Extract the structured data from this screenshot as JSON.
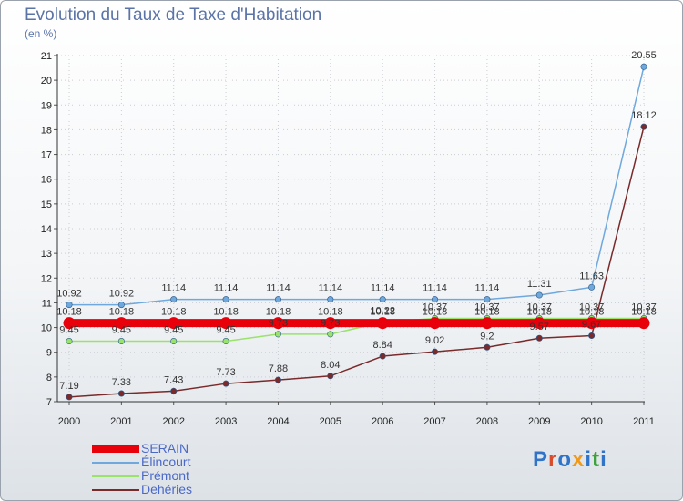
{
  "header": {
    "title": "Evolution du Taux de Taxe d'Habitation",
    "subtitle": "(en %)"
  },
  "logo": {
    "letters": [
      "P",
      "r",
      "o",
      "x",
      "i",
      "t",
      "i"
    ],
    "colors": [
      "#2f74c8",
      "#d94b2b",
      "#2f74c8",
      "#f09a1c",
      "#2f74c8",
      "#3aa23a",
      "#2f74c8"
    ]
  },
  "chart_data": {
    "type": "line",
    "title": "Evolution du Taux de Taxe d'Habitation",
    "ylabel": "(en %)",
    "xlabel": "",
    "x": [
      "2000",
      "2001",
      "2002",
      "2003",
      "2004",
      "2005",
      "2006",
      "2007",
      "2008",
      "2009",
      "2010",
      "2011"
    ],
    "ylim": [
      7,
      21
    ],
    "yticks": [
      "7",
      "8",
      "9",
      "10",
      "11",
      "12",
      "13",
      "14",
      "15",
      "16",
      "17",
      "18",
      "19",
      "20",
      "21"
    ],
    "legend_position": "bottom-left",
    "series": [
      {
        "name": "SERAIN",
        "color": "#e8000b",
        "emphasis": true,
        "values": [
          10.18,
          10.18,
          10.18,
          10.18,
          10.18,
          10.18,
          10.18,
          10.18,
          10.18,
          10.18,
          10.18,
          10.18
        ],
        "labels": [
          "10.18",
          "10.18",
          "10.18",
          "10.18",
          "10.18",
          "10.18",
          "10.18",
          "10.18",
          "10.18",
          "10.18",
          "10.18",
          "10.18"
        ]
      },
      {
        "name": "Élincourt",
        "color": "#6fa8dc",
        "values": [
          10.92,
          10.92,
          11.14,
          11.14,
          11.14,
          11.14,
          11.14,
          11.14,
          11.14,
          11.31,
          11.63,
          20.55
        ],
        "labels": [
          "10.92",
          "10.92",
          "11.14",
          "11.14",
          "11.14",
          "11.14",
          "11.14",
          "11.14",
          "11.14",
          "11.31",
          "11.63",
          "20.55"
        ]
      },
      {
        "name": "Prémont",
        "color": "#99e26b",
        "values": [
          9.45,
          9.45,
          9.45,
          9.45,
          9.73,
          9.73,
          10.22,
          10.37,
          10.37,
          10.37,
          10.37,
          10.37
        ],
        "labels": [
          "9.45",
          "9.45",
          "9.45",
          "9.45",
          "9.73",
          "9.73",
          "10.22",
          "10.37",
          "10.37",
          "10.37",
          "10.37",
          "10.37"
        ]
      },
      {
        "name": "Dehéries",
        "color": "#7a2a2a",
        "values": [
          7.19,
          7.33,
          7.43,
          7.73,
          7.88,
          8.04,
          8.84,
          9.02,
          9.2,
          9.57,
          9.67,
          18.12
        ],
        "labels": [
          "7.19",
          "7.33",
          "7.43",
          "7.73",
          "7.88",
          "8.04",
          "8.84",
          "9.02",
          "9.2",
          "9.57",
          "9.67",
          "18.12"
        ]
      }
    ]
  }
}
